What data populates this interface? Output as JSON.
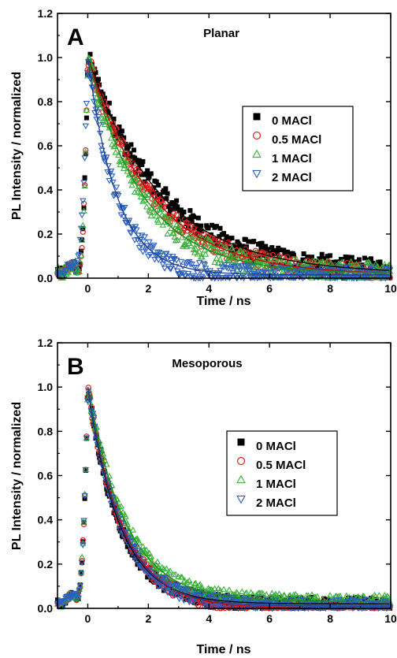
{
  "chart_data": [
    {
      "type": "scatter",
      "panel_letter": "A",
      "title": "Planar",
      "xlabel": "Time / ns",
      "ylabel": "PL Intensity / normalized",
      "xlim": [
        -1,
        10
      ],
      "ylim": [
        0,
        1.2
      ],
      "xticks": [
        "0",
        "2",
        "4",
        "6",
        "8",
        "10"
      ],
      "yticks": [
        "0.0",
        "0.2",
        "0.4",
        "0.6",
        "0.8",
        "1.0",
        "1.2"
      ],
      "legend_position": "center-right",
      "series": [
        {
          "name": "0 MACl",
          "marker": "square-filled",
          "color": "#000000",
          "rise_start": -0.3,
          "tau": 2.4,
          "noise": 0.05,
          "fit_tail": 0.02,
          "points": [
            [
              -1,
              0.05
            ],
            [
              -0.5,
              0.04
            ],
            [
              -0.2,
              0.2
            ],
            [
              -0.1,
              0.6
            ],
            [
              0,
              1.0
            ],
            [
              0.5,
              0.86
            ],
            [
              1,
              0.72
            ],
            [
              1.5,
              0.6
            ],
            [
              2,
              0.48
            ],
            [
              2.5,
              0.4
            ],
            [
              3,
              0.34
            ],
            [
              3.5,
              0.27
            ],
            [
              4,
              0.2
            ],
            [
              5,
              0.12
            ],
            [
              6,
              0.08
            ],
            [
              7,
              0.06
            ],
            [
              8,
              0.05
            ],
            [
              9,
              0.04
            ],
            [
              10,
              0.03
            ]
          ]
        },
        {
          "name": "0.5 MACl",
          "marker": "circle-open",
          "color": "#e02020",
          "rise_start": -0.3,
          "tau": 2.1,
          "noise": 0.04,
          "fit_tail": 0.015,
          "points": [
            [
              -1,
              0.03
            ],
            [
              -0.2,
              0.4
            ],
            [
              0,
              1.0
            ],
            [
              0.5,
              0.84
            ],
            [
              1,
              0.68
            ],
            [
              1.5,
              0.55
            ],
            [
              2,
              0.44
            ],
            [
              3,
              0.28
            ],
            [
              4,
              0.16
            ],
            [
              5,
              0.1
            ],
            [
              6,
              0.06
            ],
            [
              7,
              0.04
            ],
            [
              8,
              0.03
            ]
          ]
        },
        {
          "name": "1 MACl",
          "marker": "triangle-up-open",
          "color": "#3ab23a",
          "rise_start": -0.3,
          "tau": 1.8,
          "noise": 0.05,
          "fit_tail": 0.02,
          "points": [
            [
              -1,
              0.05
            ],
            [
              -0.2,
              0.3
            ],
            [
              0,
              1.0
            ],
            [
              0.5,
              0.78
            ],
            [
              1,
              0.6
            ],
            [
              1.5,
              0.47
            ],
            [
              2,
              0.36
            ],
            [
              3,
              0.22
            ],
            [
              4,
              0.14
            ],
            [
              5,
              0.1
            ],
            [
              6,
              0.07
            ],
            [
              8,
              0.05
            ],
            [
              10,
              0.04
            ]
          ]
        },
        {
          "name": "2 MACl",
          "marker": "triangle-down-open",
          "color": "#2c5fbf",
          "rise_start": -0.4,
          "tau": 0.95,
          "noise": 0.04,
          "fit_tail": 0.015,
          "points": [
            [
              -1,
              0.07
            ],
            [
              -0.5,
              0.1
            ],
            [
              -0.3,
              0.2
            ],
            [
              0,
              1.0
            ],
            [
              0.3,
              0.75
            ],
            [
              0.6,
              0.55
            ],
            [
              1,
              0.38
            ],
            [
              1.5,
              0.22
            ],
            [
              2,
              0.14
            ],
            [
              3,
              0.06
            ],
            [
              4,
              0.04
            ],
            [
              6,
              0.03
            ],
            [
              8,
              0.02
            ],
            [
              10,
              0.02
            ]
          ]
        }
      ]
    },
    {
      "type": "scatter",
      "panel_letter": "B",
      "title": "Mesoporous",
      "xlabel": "Time / ns",
      "ylabel": "PL Intensity / normalized",
      "xlim": [
        -1,
        10
      ],
      "ylim": [
        0,
        1.2
      ],
      "xticks": [
        "0",
        "2",
        "4",
        "6",
        "8",
        "10"
      ],
      "yticks": [
        "0.0",
        "0.2",
        "0.4",
        "0.6",
        "0.8",
        "1.0",
        "1.2"
      ],
      "legend_position": "center-right",
      "series": [
        {
          "name": "0 MACl",
          "marker": "square-filled",
          "color": "#000000",
          "rise_start": -0.35,
          "tau": 1.05,
          "noise": 0.03,
          "fit_tail": 0.02,
          "points": [
            [
              -1,
              0.02
            ],
            [
              -0.3,
              0.1
            ],
            [
              0,
              1.0
            ],
            [
              0.5,
              0.6
            ],
            [
              1,
              0.38
            ],
            [
              1.5,
              0.22
            ],
            [
              2,
              0.14
            ],
            [
              3,
              0.07
            ],
            [
              4,
              0.05
            ],
            [
              6,
              0.03
            ],
            [
              8,
              0.02
            ],
            [
              10,
              0.02
            ]
          ]
        },
        {
          "name": "0.5 MACl",
          "marker": "circle-open",
          "color": "#e02020",
          "rise_start": -0.35,
          "tau": 1.15,
          "noise": 0.03,
          "fit_tail": 0.0,
          "points": [
            [
              -1,
              0.02
            ],
            [
              -0.3,
              0.1
            ],
            [
              0,
              1.0
            ],
            [
              0.5,
              0.66
            ],
            [
              1,
              0.42
            ],
            [
              1.5,
              0.26
            ],
            [
              2,
              0.15
            ],
            [
              3,
              0.05
            ],
            [
              4,
              0.02
            ],
            [
              5,
              0.01
            ]
          ]
        },
        {
          "name": "1 MACl",
          "marker": "triangle-up-open",
          "color": "#3ab23a",
          "rise_start": -0.35,
          "tau": 1.25,
          "noise": 0.03,
          "fit_tail": 0.03,
          "points": [
            [
              -1,
              0.05
            ],
            [
              -0.3,
              0.12
            ],
            [
              0,
              1.0
            ],
            [
              0.5,
              0.68
            ],
            [
              1,
              0.46
            ],
            [
              1.5,
              0.3
            ],
            [
              2,
              0.2
            ],
            [
              3,
              0.1
            ],
            [
              4,
              0.06
            ],
            [
              6,
              0.04
            ],
            [
              8,
              0.03
            ],
            [
              10,
              0.03
            ]
          ]
        },
        {
          "name": "2 MACl",
          "marker": "triangle-down-open",
          "color": "#2c5fbf",
          "rise_start": -0.35,
          "tau": 1.1,
          "noise": 0.03,
          "fit_tail": 0.01,
          "points": [
            [
              -1,
              0.02
            ],
            [
              -0.3,
              0.1
            ],
            [
              0,
              1.0
            ],
            [
              0.5,
              0.62
            ],
            [
              1,
              0.4
            ],
            [
              1.5,
              0.24
            ],
            [
              2,
              0.14
            ],
            [
              3,
              0.05
            ],
            [
              4,
              0.02
            ],
            [
              6,
              0.01
            ]
          ]
        }
      ]
    }
  ]
}
